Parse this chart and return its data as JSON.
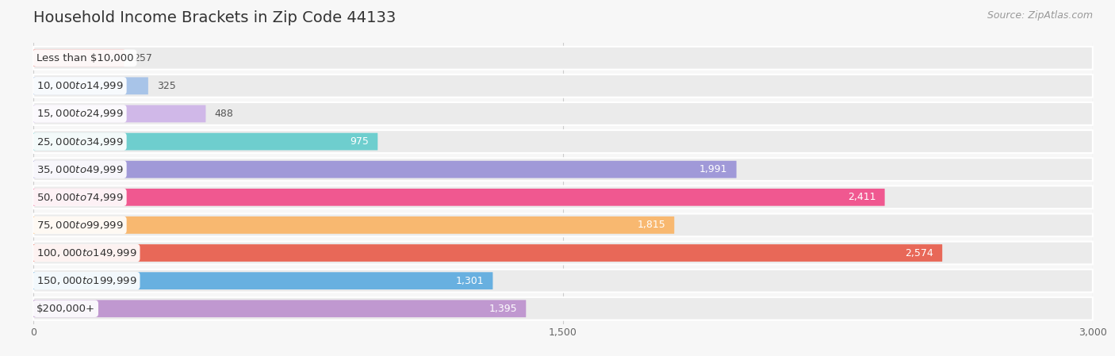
{
  "title": "Household Income Brackets in Zip Code 44133",
  "source": "Source: ZipAtlas.com",
  "categories": [
    "Less than $10,000",
    "$10,000 to $14,999",
    "$15,000 to $24,999",
    "$25,000 to $34,999",
    "$35,000 to $49,999",
    "$50,000 to $74,999",
    "$75,000 to $99,999",
    "$100,000 to $149,999",
    "$150,000 to $199,999",
    "$200,000+"
  ],
  "values": [
    257,
    325,
    488,
    975,
    1991,
    2411,
    1815,
    2574,
    1301,
    1395
  ],
  "bar_colors": [
    "#f2a8a5",
    "#a8c4e8",
    "#d0b8e8",
    "#6ecece",
    "#a099d8",
    "#f05890",
    "#f8b870",
    "#e86858",
    "#68b0e0",
    "#c098d0"
  ],
  "xlim": [
    0,
    3000
  ],
  "xticks": [
    0,
    1500,
    3000
  ],
  "background_color": "#f7f7f7",
  "row_bg_color": "#ebebeb",
  "title_fontsize": 14,
  "label_fontsize": 9.5,
  "value_fontsize": 9,
  "source_fontsize": 9
}
